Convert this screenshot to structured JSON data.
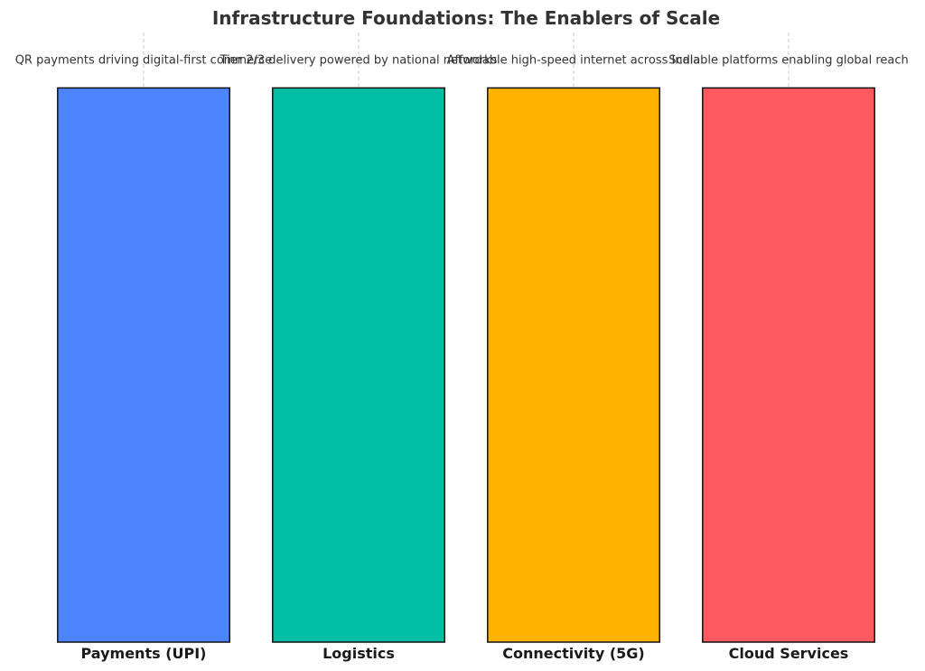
{
  "chart_data": {
    "type": "bar",
    "title": "Infrastructure Foundations: The Enablers of Scale",
    "xlabel": "",
    "ylabel": "",
    "categories": [
      "Payments (UPI)",
      "Logistics",
      "Connectivity (5G)",
      "Cloud Services"
    ],
    "values": [
      1,
      1,
      1,
      1
    ],
    "ylim": [
      0,
      1.1
    ],
    "bar_labels": [
      "QR payments driving digital-first commerce",
      "Tier 2/3 delivery powered by national networks",
      "Affordable high-speed internet across India",
      "Scalable platforms enabling global reach"
    ],
    "colors": [
      "#4D84FF",
      "#00BFA5",
      "#FFB300",
      "#FF5A5F"
    ],
    "grid": "x",
    "yaxis_visible": false
  }
}
